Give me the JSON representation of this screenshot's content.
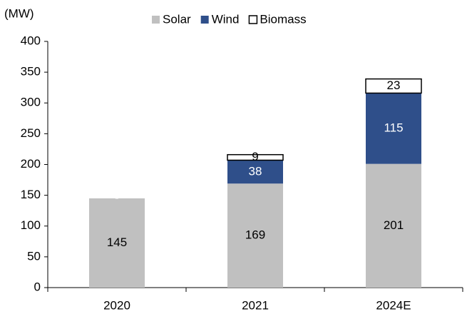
{
  "chart_data": {
    "type": "stacked_bar",
    "y_label": "(MW)",
    "categories": [
      "2020",
      "2021",
      "2024E"
    ],
    "series": [
      {
        "name": "Solar",
        "color": "#c0c0c0",
        "values": [
          145,
          169,
          201
        ],
        "label_color": "#000000"
      },
      {
        "name": "Wind",
        "color": "#2f4f8a",
        "values": [
          0,
          38,
          115
        ],
        "value_labels": [
          "-",
          "38",
          "115"
        ],
        "label_color": "#ffffff"
      },
      {
        "name": "Biomass",
        "color": "#ffffff",
        "values": [
          null,
          9,
          23
        ],
        "label_color": "#000000"
      }
    ],
    "ylim": [
      0,
      400
    ],
    "yticks": [
      0,
      50,
      100,
      150,
      200,
      250,
      300,
      350,
      400
    ],
    "grid": false,
    "legend": "top"
  }
}
